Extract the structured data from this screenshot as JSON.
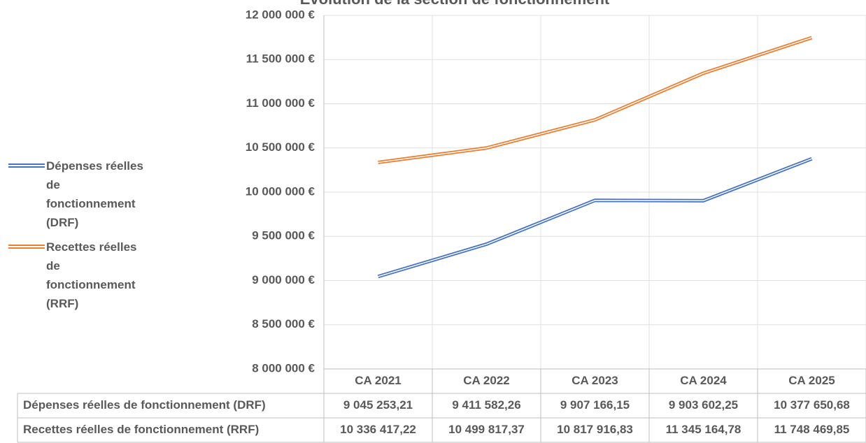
{
  "chart_data": {
    "type": "line",
    "title": "Évolution de la section de fonctionnement",
    "categories": [
      "CA 2021",
      "CA 2022",
      "CA 2023",
      "CA 2024",
      "CA 2025"
    ],
    "series": [
      {
        "name": "Dépenses réelles de fonctionnement (DRF)",
        "color": "#4472c4",
        "values": [
          9045253.21,
          9411582.26,
          9907166.15,
          9903602.25,
          10377650.68
        ],
        "value_labels": [
          "9 045 253,21",
          "9 411 582,26",
          "9 907 166,15",
          "9 903 602,25",
          "10 377 650,68"
        ]
      },
      {
        "name": "Recettes réelles de fonctionnement (RRF)",
        "color": "#ed7d31",
        "values": [
          10336417.22,
          10499817.37,
          10817916.83,
          11345164.78,
          11748469.85
        ],
        "value_labels": [
          "10 336 417,22",
          "10 499 817,37",
          "10 817 916,83",
          "11 345 164,78",
          "11 748 469,85"
        ]
      }
    ],
    "ylim": [
      8000000,
      12000000
    ],
    "yticks": [
      {
        "value": 8000000,
        "label": "8 000 000 €"
      },
      {
        "value": 8500000,
        "label": "8 500 000 €"
      },
      {
        "value": 9000000,
        "label": "9 000 000 €"
      },
      {
        "value": 9500000,
        "label": "9 500 000 €"
      },
      {
        "value": 10000000,
        "label": "10 000 000 €"
      },
      {
        "value": 10500000,
        "label": "10 500 000 €"
      },
      {
        "value": 11000000,
        "label": "11 000 000 €"
      },
      {
        "value": 11500000,
        "label": "11 500 000 €"
      },
      {
        "value": 12000000,
        "label": "12 000 000 €"
      }
    ],
    "grid": true,
    "legend": "left",
    "data_table": true
  }
}
